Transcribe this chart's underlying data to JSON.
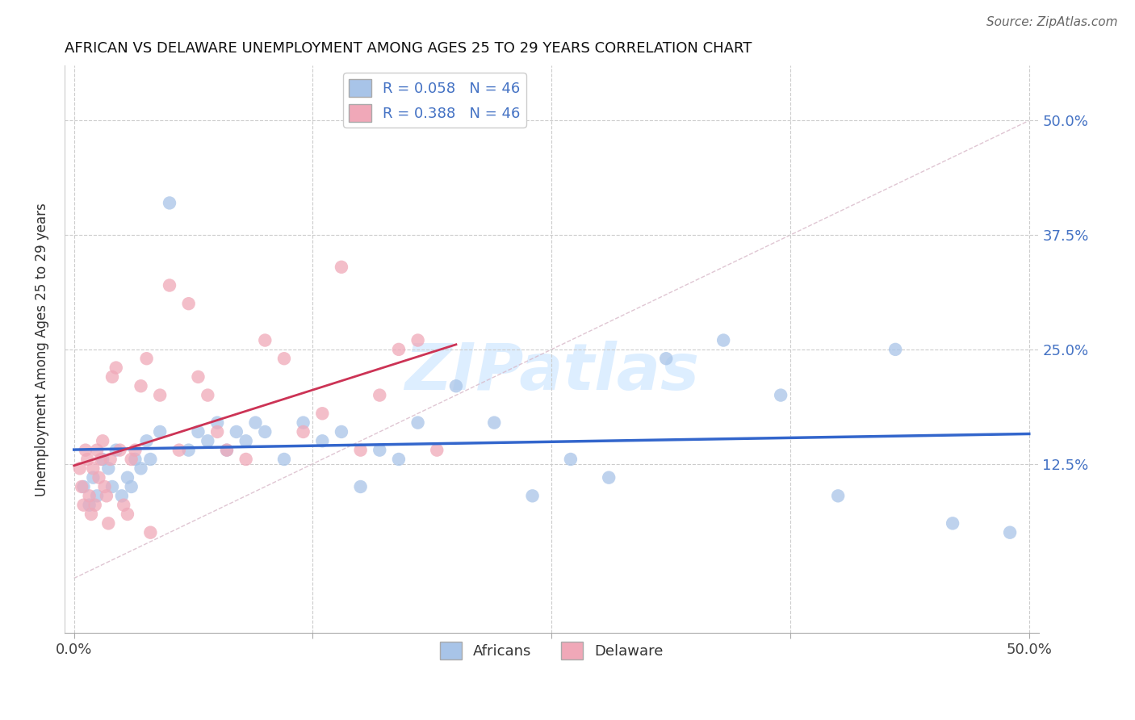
{
  "title": "AFRICAN VS DELAWARE UNEMPLOYMENT AMONG AGES 25 TO 29 YEARS CORRELATION CHART",
  "source": "Source: ZipAtlas.com",
  "ylabel": "Unemployment Among Ages 25 to 29 years",
  "xlim": [
    -0.005,
    0.505
  ],
  "ylim": [
    -0.06,
    0.56
  ],
  "xtick_positions": [
    0.0,
    0.125,
    0.25,
    0.375,
    0.5
  ],
  "xtick_labels": [
    "0.0%",
    "",
    "",
    "",
    "50.0%"
  ],
  "ytick_positions": [
    0.125,
    0.25,
    0.375,
    0.5
  ],
  "ytick_labels": [
    "12.5%",
    "25.0%",
    "37.5%",
    "50.0%"
  ],
  "africans_color": "#a8c4e8",
  "delaware_color": "#f0a8b8",
  "africans_line_color": "#3366cc",
  "delaware_line_color": "#cc3355",
  "diag_color": "#d8b8c8",
  "watermark_color": "#ddeeff",
  "africans_R": 0.058,
  "africans_N": 46,
  "delaware_R": 0.388,
  "delaware_N": 46,
  "africans_x": [
    0.005,
    0.008,
    0.01,
    0.012,
    0.015,
    0.018,
    0.02,
    0.022,
    0.025,
    0.028,
    0.03,
    0.032,
    0.035,
    0.038,
    0.04,
    0.045,
    0.05,
    0.06,
    0.065,
    0.07,
    0.075,
    0.08,
    0.085,
    0.09,
    0.095,
    0.1,
    0.11,
    0.12,
    0.13,
    0.14,
    0.15,
    0.16,
    0.17,
    0.18,
    0.2,
    0.22,
    0.24,
    0.26,
    0.28,
    0.31,
    0.34,
    0.37,
    0.4,
    0.43,
    0.46,
    0.49
  ],
  "africans_y": [
    0.1,
    0.08,
    0.11,
    0.09,
    0.13,
    0.12,
    0.1,
    0.14,
    0.09,
    0.11,
    0.1,
    0.13,
    0.12,
    0.15,
    0.13,
    0.16,
    0.41,
    0.14,
    0.16,
    0.15,
    0.17,
    0.14,
    0.16,
    0.15,
    0.17,
    0.16,
    0.13,
    0.17,
    0.15,
    0.16,
    0.1,
    0.14,
    0.13,
    0.17,
    0.21,
    0.17,
    0.09,
    0.13,
    0.11,
    0.24,
    0.26,
    0.2,
    0.09,
    0.25,
    0.06,
    0.05
  ],
  "delaware_x": [
    0.003,
    0.004,
    0.005,
    0.006,
    0.007,
    0.008,
    0.009,
    0.01,
    0.011,
    0.012,
    0.013,
    0.014,
    0.015,
    0.016,
    0.017,
    0.018,
    0.019,
    0.02,
    0.022,
    0.024,
    0.026,
    0.028,
    0.03,
    0.032,
    0.035,
    0.038,
    0.04,
    0.045,
    0.05,
    0.055,
    0.06,
    0.065,
    0.07,
    0.075,
    0.08,
    0.09,
    0.1,
    0.11,
    0.12,
    0.13,
    0.14,
    0.15,
    0.16,
    0.17,
    0.18,
    0.19
  ],
  "delaware_y": [
    0.12,
    0.1,
    0.08,
    0.14,
    0.13,
    0.09,
    0.07,
    0.12,
    0.08,
    0.14,
    0.11,
    0.13,
    0.15,
    0.1,
    0.09,
    0.06,
    0.13,
    0.22,
    0.23,
    0.14,
    0.08,
    0.07,
    0.13,
    0.14,
    0.21,
    0.24,
    0.05,
    0.2,
    0.32,
    0.14,
    0.3,
    0.22,
    0.2,
    0.16,
    0.14,
    0.13,
    0.26,
    0.24,
    0.16,
    0.18,
    0.34,
    0.14,
    0.2,
    0.25,
    0.26,
    0.14
  ],
  "delaware_line_xrange": [
    0.0,
    0.2
  ]
}
